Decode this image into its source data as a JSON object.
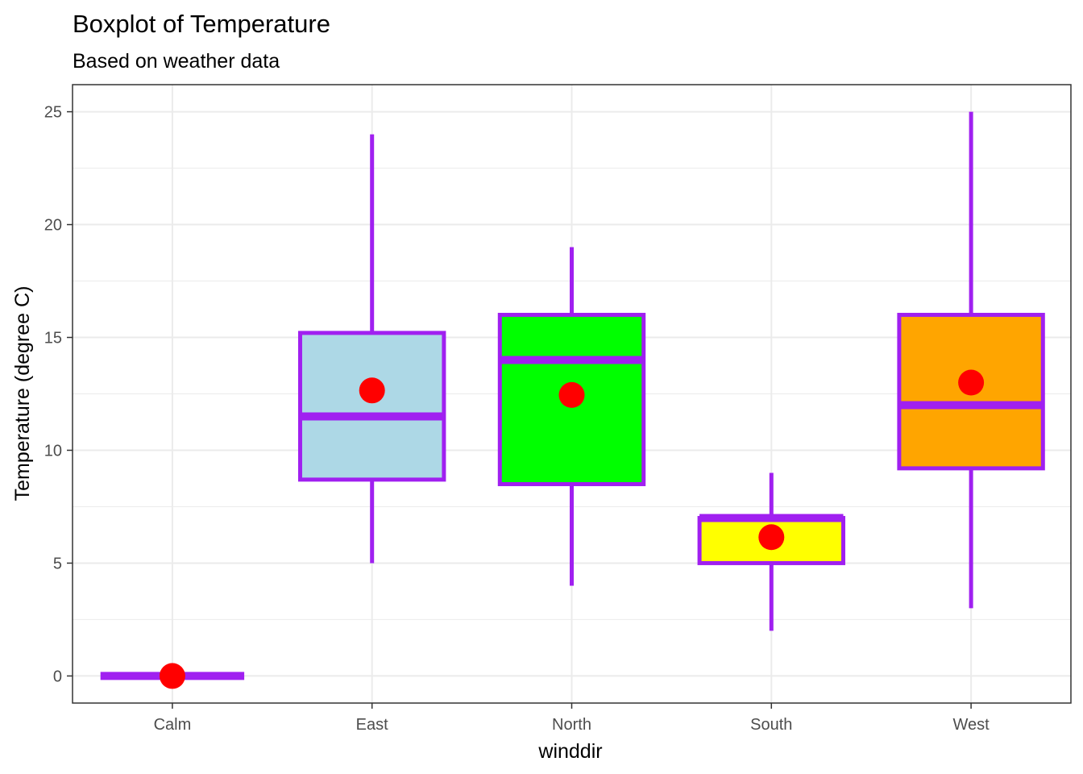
{
  "chart_data": {
    "type": "boxplot",
    "title": "Boxplot of Temperature",
    "subtitle": "Based on weather data",
    "xlabel": "winddir",
    "ylabel": "Temperature (degree C)",
    "ylim": [
      -1.2,
      26.2
    ],
    "y_ticks": [
      0,
      5,
      10,
      15,
      20,
      25
    ],
    "y_tick_labels": [
      "0",
      "5",
      "10",
      "15",
      "20",
      "25"
    ],
    "grid": true,
    "categories": [
      "Calm",
      "East",
      "North",
      "South",
      "West"
    ],
    "boxes": [
      {
        "category": "Calm",
        "min": 0,
        "q1": 0,
        "median": 0,
        "q3": 0,
        "max": 0,
        "mean": 0,
        "fill": "#b0d8e6"
      },
      {
        "category": "East",
        "min": 5,
        "q1": 8.7,
        "median": 11.5,
        "q3": 15.2,
        "max": 24,
        "mean": 12.65,
        "fill": "#add8e6"
      },
      {
        "category": "North",
        "min": 4,
        "q1": 8.5,
        "median": 14.0,
        "q3": 16.0,
        "max": 19,
        "mean": 12.45,
        "fill": "#00ff00"
      },
      {
        "category": "South",
        "min": 2,
        "q1": 5.0,
        "median": 7.0,
        "q3": 7.0,
        "max": 9,
        "mean": 6.15,
        "fill": "#ffff00"
      },
      {
        "category": "West",
        "min": 3,
        "q1": 9.2,
        "median": 12.0,
        "q3": 16.0,
        "max": 25,
        "mean": 13.0,
        "fill": "#ffa500"
      }
    ],
    "colors": {
      "outline": "#a020f0",
      "mean_point": "#ff0000",
      "grid": "#ebebeb",
      "panel_border": "#333333"
    }
  }
}
